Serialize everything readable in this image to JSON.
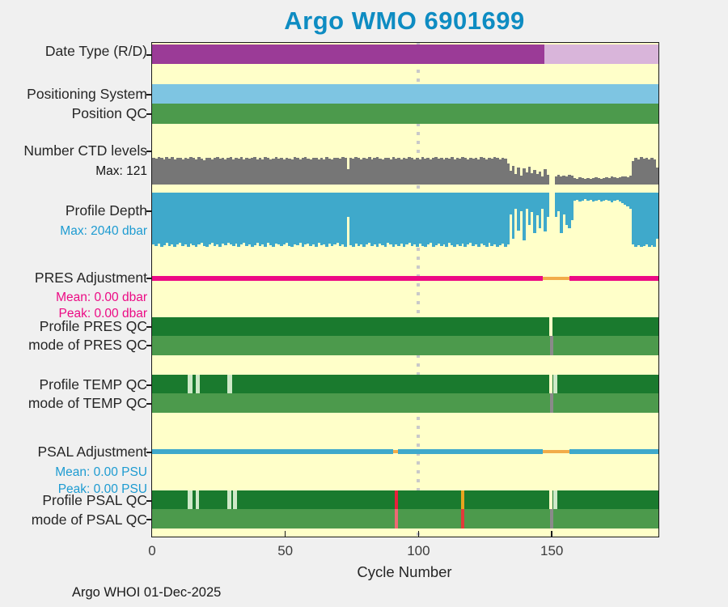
{
  "title": "Argo WMO 6901699",
  "footer": "Argo WHOI 01-Dec-2025",
  "colors": {
    "page_bg": "#f0f0f0",
    "plot_bg": "#ffffc9",
    "title_blue": "#0e8cc2",
    "label_dark": "#262626",
    "magenta": "#ec0a84",
    "sub_blue": "#1d9bd1",
    "purple_dark": "#9b3b97",
    "purple_light": "#d9b5da",
    "positioning_blue": "#7ec5e2",
    "qc_green": "#4c9a4c",
    "qc_dark_green": "#1a7a2e",
    "ctd_gray": "#767676",
    "depth_blue": "#3fa9cb",
    "adjustment_orange": "#f2ac49",
    "pale_green_mark": "#cfe9c8",
    "gray_mark": "#8a8a8a",
    "red_mark": "#e8203c",
    "amber_mark": "#e7a41f",
    "pink_mark": "#ed6a74",
    "red2_mark": "#e23a3a",
    "reference_dot_gray": "#c9c9c9"
  },
  "labels": {
    "date_type": {
      "text": "Date Type (R/D)"
    },
    "positioning_system": {
      "text": "Positioning System"
    },
    "position_qc": {
      "text": "Position QC"
    },
    "ctd_levels": {
      "text": "Number CTD levels",
      "sub": "Max: 121"
    },
    "profile_depth": {
      "text": "Profile Depth",
      "sub": "Max: 2040 dbar"
    },
    "pres_adjustment": {
      "text": "PRES Adjustment",
      "mean": "Mean: 0.00 dbar",
      "peak": "Peak: 0.00 dbar"
    },
    "profile_pres_qc": {
      "text": "Profile PRES QC"
    },
    "mode_pres_qc": {
      "text": "mode of PRES QC"
    },
    "profile_temp_qc": {
      "text": "Profile TEMP QC"
    },
    "mode_temp_qc": {
      "text": "mode of TEMP QC"
    },
    "psal_adjustment": {
      "text": "PSAL Adjustment",
      "mean": "Mean: 0.00 PSU",
      "peak": "Peak: 0.00 PSU"
    },
    "profile_psal_qc": {
      "text": "Profile PSAL QC"
    },
    "mode_psal_qc": {
      "text": "mode of PSAL QC"
    }
  },
  "chart_data": {
    "type": "timeline",
    "x": {
      "label": "Cycle Number",
      "min": 0,
      "max": 190,
      "ticks": [
        0,
        50,
        100,
        150
      ]
    },
    "reference_line_cycle": 100,
    "rows": [
      {
        "id": "date_type",
        "kind": "segments",
        "segments": [
          {
            "start": 0,
            "end": 147.2,
            "color": "#9b3b97"
          },
          {
            "start": 147.2,
            "end": 190,
            "color": "#d9b5da"
          }
        ]
      },
      {
        "id": "positioning_system",
        "kind": "segments",
        "segments": [
          {
            "start": 0,
            "end": 190,
            "color": "#7ec5e2"
          }
        ]
      },
      {
        "id": "position_qc",
        "kind": "segments",
        "segments": [
          {
            "start": 0,
            "end": 190,
            "color": "#4c9a4c"
          }
        ]
      },
      {
        "id": "number_ctd_levels",
        "kind": "bars-up",
        "max": 121,
        "color": "#767676",
        "values": [
          117,
          113,
          121,
          115,
          109,
          119,
          114,
          121,
          111,
          116,
          115,
          109,
          117,
          113,
          121,
          116,
          110,
          119,
          114,
          106,
          117,
          115,
          109,
          116,
          121,
          113,
          117,
          109,
          115,
          119,
          111,
          116,
          114,
          121,
          109,
          117,
          113,
          115,
          119,
          110,
          116,
          111,
          119,
          115,
          109,
          114,
          121,
          113,
          116,
          109,
          117,
          114,
          110,
          119,
          115,
          111,
          116,
          121,
          113,
          109,
          115,
          117,
          111,
          116,
          109,
          119,
          114,
          110,
          117,
          115,
          113,
          119,
          116,
          67,
          117,
          113,
          121,
          115,
          109,
          116,
          114,
          119,
          111,
          116,
          121,
          113,
          109,
          117,
          115,
          110,
          119,
          114,
          116,
          109,
          117,
          113,
          121,
          115,
          111,
          116,
          109,
          119,
          114,
          117,
          111,
          115,
          121,
          113,
          116,
          109,
          117,
          114,
          119,
          110,
          116,
          113,
          121,
          115,
          109,
          117,
          113,
          116,
          111,
          119,
          115,
          109,
          117,
          114,
          121,
          116,
          111,
          117,
          114,
          91,
          61,
          82,
          46,
          73,
          39,
          70,
          54,
          77,
          48,
          63,
          44,
          58,
          36,
          67,
          42,
          0,
          0,
          36,
          41,
          34,
          39,
          35,
          42,
          38,
          29,
          25,
          30,
          27,
          24,
          29,
          25,
          28,
          31,
          27,
          24,
          29,
          33,
          28,
          34,
          30,
          27,
          33,
          36,
          34,
          31,
          38,
          103,
          115,
          109,
          121,
          113,
          117,
          108,
          115,
          110,
          75
        ]
      },
      {
        "id": "profile_depth",
        "kind": "bars-down",
        "max": 2040,
        "color": "#3fa9cb",
        "values": [
          1960,
          2020,
          1920,
          2040,
          1980,
          1900,
          2000,
          1940,
          2040,
          1960,
          1900,
          2020,
          1960,
          2040,
          1920,
          1980,
          2040,
          1940,
          1880,
          2000,
          2040,
          1960,
          1900,
          2020,
          1940,
          2040,
          1920,
          1980,
          1880,
          1960,
          2020,
          1920,
          2040,
          1960,
          1900,
          2000,
          1940,
          2040,
          1980,
          1900,
          2000,
          1940,
          2040,
          1900,
          1980,
          2040,
          1920,
          1960,
          2020,
          1940,
          1900,
          2000,
          2040,
          1940,
          1980,
          1900,
          2040,
          1960,
          1920,
          2020,
          1960,
          2040,
          1900,
          1980,
          1940,
          2040,
          1920,
          2000,
          1960,
          1900,
          2020,
          1940,
          2040,
          920,
          1980,
          2040,
          1920,
          2000,
          1940,
          2040,
          1960,
          1900,
          2020,
          1940,
          2040,
          1920,
          1980,
          2040,
          1900,
          1960,
          2040,
          1940,
          2000,
          1920,
          2040,
          1960,
          1900,
          2020,
          1940,
          2040,
          1920,
          2000,
          2040,
          1940,
          1900,
          2040,
          1980,
          1920,
          2020,
          1960,
          2040,
          1900,
          1980,
          2040,
          1940,
          2000,
          1920,
          2040,
          1960,
          1900,
          2020,
          1940,
          2040,
          1920,
          1980,
          2040,
          1900,
          2000,
          1940,
          2040,
          1980,
          1920,
          2040,
          1940,
          820,
          1730,
          610,
          1430,
          710,
          1800,
          610,
          1220,
          730,
          1530,
          860,
          1330,
          610,
          1470,
          920,
          0,
          0,
          920,
          710,
          1530,
          820,
          1220,
          1350,
          1020,
          310,
          270,
          330,
          290,
          240,
          310,
          270,
          350,
          290,
          270,
          330,
          310,
          270,
          290,
          370,
          310,
          270,
          330,
          410,
          450,
          530,
          610,
          1940,
          2040,
          1980,
          2040,
          2000,
          1940,
          2040,
          1980,
          2040,
          1730
        ]
      },
      {
        "id": "pres_adjustment",
        "kind": "line-segments",
        "segments": [
          {
            "start": 0,
            "end": 146.6,
            "color": "#ec0a84"
          },
          {
            "start": 146.6,
            "end": 156.6,
            "color": "#f2ac49",
            "thin": true
          },
          {
            "start": 156.6,
            "end": 190,
            "color": "#ec0a84"
          }
        ]
      },
      {
        "id": "profile_pres_qc",
        "kind": "status",
        "base": "#1a7a2e",
        "marks": [
          {
            "c": 149.6,
            "w": 1.1,
            "color": "#ffffc9"
          }
        ]
      },
      {
        "id": "mode_pres_qc",
        "kind": "status",
        "base": "#4c9a4c",
        "marks": [
          {
            "c": 150,
            "w": 1.3,
            "color": "#8a8a8a"
          }
        ]
      },
      {
        "id": "profile_temp_qc",
        "kind": "status",
        "base": "#1a7a2e",
        "marks": [
          {
            "c": 14.3,
            "w": 1.8,
            "color": "#cfe9c8"
          },
          {
            "c": 17.1,
            "w": 1.5,
            "color": "#cfe9c8"
          },
          {
            "c": 29.1,
            "w": 1.8,
            "color": "#cfe9c8"
          },
          {
            "c": 149.6,
            "w": 1.1,
            "color": "#ffffc9"
          },
          {
            "c": 151.2,
            "w": 1.6,
            "color": "#cfe9c8"
          }
        ]
      },
      {
        "id": "mode_temp_qc",
        "kind": "status",
        "base": "#4c9a4c",
        "marks": [
          {
            "c": 150,
            "w": 1.3,
            "color": "#8a8a8a"
          }
        ]
      },
      {
        "id": "psal_adjustment",
        "kind": "line-segments",
        "segments": [
          {
            "start": 0,
            "end": 90.3,
            "color": "#3fa9cb"
          },
          {
            "start": 90.3,
            "end": 92.3,
            "color": "#f2ac49",
            "thin": true
          },
          {
            "start": 92.3,
            "end": 146.6,
            "color": "#3fa9cb"
          },
          {
            "start": 146.6,
            "end": 156.6,
            "color": "#f2ac49",
            "thin": true
          },
          {
            "start": 156.6,
            "end": 190,
            "color": "#3fa9cb"
          }
        ]
      },
      {
        "id": "profile_psal_qc",
        "kind": "status",
        "base": "#1a7a2e",
        "marks": [
          {
            "c": 14.3,
            "w": 1.8,
            "color": "#cfe9c8"
          },
          {
            "c": 17.0,
            "w": 1.4,
            "color": "#cfe9c8"
          },
          {
            "c": 29.0,
            "w": 1.6,
            "color": "#cfe9c8"
          },
          {
            "c": 31.2,
            "w": 1.4,
            "color": "#cfe9c8"
          },
          {
            "c": 91.7,
            "w": 1.4,
            "color": "#e8203c"
          },
          {
            "c": 116.6,
            "w": 1.4,
            "color": "#e7a41f"
          },
          {
            "c": 149.6,
            "w": 1.1,
            "color": "#ffffc9"
          },
          {
            "c": 151.2,
            "w": 1.6,
            "color": "#cfe9c8"
          }
        ]
      },
      {
        "id": "mode_psal_qc",
        "kind": "status",
        "base": "#4c9a4c",
        "marks": [
          {
            "c": 91.7,
            "w": 1.4,
            "color": "#ed6a74"
          },
          {
            "c": 116.6,
            "w": 1.4,
            "color": "#e23a3a"
          },
          {
            "c": 150,
            "w": 1.3,
            "color": "#8a8a8a"
          }
        ]
      }
    ]
  }
}
